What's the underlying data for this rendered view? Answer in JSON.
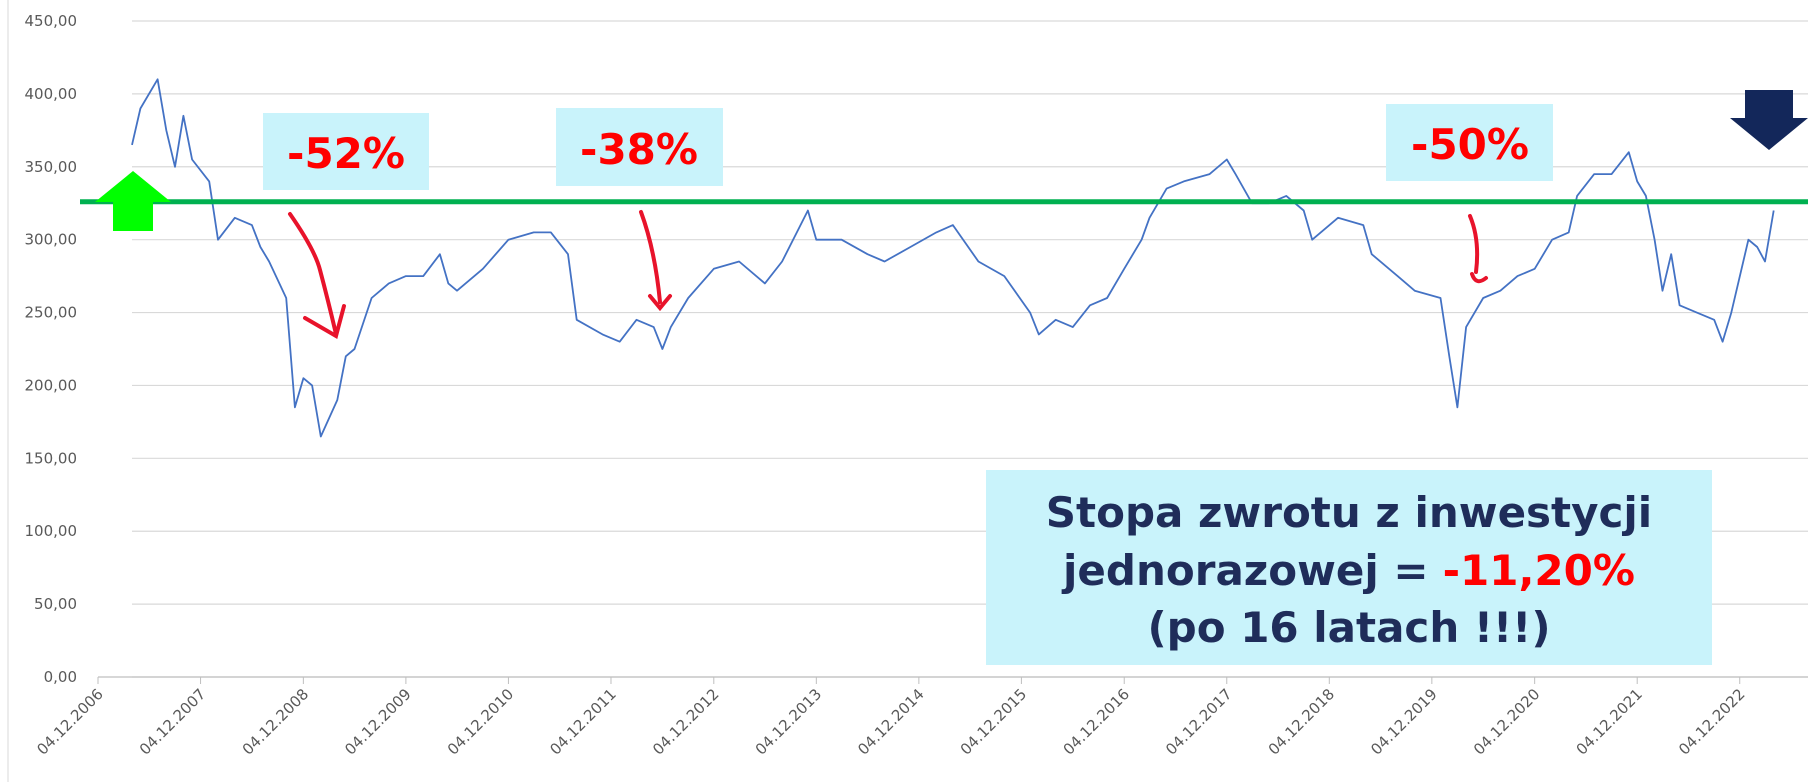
{
  "chart_data": {
    "type": "line",
    "color": "#4472c4",
    "x": [
      "04.04.2007",
      "04.05.2007",
      "04.07.2007",
      "04.08.2007",
      "04.09.2007",
      "04.10.2007",
      "04.11.2007",
      "04.01.2008",
      "04.02.2008",
      "04.04.2008",
      "04.06.2008",
      "04.07.2008",
      "04.08.2008",
      "04.10.2008",
      "04.11.2008",
      "04.12.2008",
      "04.01.2009",
      "04.02.2009",
      "04.04.2009",
      "04.05.2009",
      "04.06.2009",
      "04.08.2009",
      "04.10.2009",
      "04.12.2009",
      "04.02.2010",
      "04.04.2010",
      "04.05.2010",
      "04.06.2010",
      "04.09.2010",
      "04.12.2010",
      "04.03.2011",
      "04.05.2011",
      "04.07.2011",
      "04.08.2011",
      "04.11.2011",
      "04.01.2012",
      "04.03.2012",
      "04.05.2012",
      "04.06.2012",
      "04.07.2012",
      "04.09.2012",
      "04.12.2012",
      "04.03.2013",
      "04.06.2013",
      "04.08.2013",
      "04.11.2013",
      "04.12.2013",
      "04.03.2014",
      "04.06.2014",
      "04.08.2014",
      "04.11.2014",
      "04.02.2015",
      "04.04.2015",
      "04.07.2015",
      "04.10.2015",
      "04.01.2016",
      "04.02.2016",
      "04.04.2016",
      "04.06.2016",
      "04.08.2016",
      "04.10.2016",
      "04.12.2016",
      "04.02.2017",
      "04.03.2017",
      "04.05.2017",
      "04.07.2017",
      "04.10.2017",
      "04.12.2017",
      "04.01.2018",
      "04.03.2018",
      "04.05.2018",
      "04.07.2018",
      "04.09.2018",
      "04.10.2018",
      "04.01.2019",
      "04.04.2019",
      "04.05.2019",
      "04.08.2019",
      "04.10.2019",
      "04.01.2020",
      "04.02.2020",
      "04.03.2020",
      "04.04.2020",
      "04.06.2020",
      "04.08.2020",
      "04.10.2020",
      "04.12.2020",
      "04.02.2021",
      "04.04.2021",
      "04.05.2021",
      "04.07.2021",
      "04.09.2021",
      "04.11.2021",
      "04.12.2021",
      "04.01.2022",
      "04.02.2022",
      "04.03.2022",
      "04.04.2022",
      "04.05.2022",
      "04.07.2022",
      "04.09.2022",
      "04.10.2022",
      "04.11.2022",
      "04.01.2023",
      "04.02.2023",
      "04.03.2023",
      "04.04.2023"
    ],
    "values": [
      365,
      390,
      410,
      375,
      350,
      385,
      355,
      340,
      300,
      315,
      310,
      295,
      285,
      260,
      185,
      205,
      200,
      165,
      190,
      220,
      225,
      260,
      270,
      275,
      275,
      290,
      270,
      265,
      280,
      300,
      305,
      305,
      290,
      245,
      235,
      230,
      245,
      240,
      225,
      240,
      260,
      280,
      285,
      270,
      285,
      320,
      300,
      300,
      290,
      285,
      295,
      305,
      310,
      285,
      275,
      250,
      235,
      245,
      240,
      255,
      260,
      280,
      300,
      315,
      335,
      340,
      345,
      355,
      345,
      325,
      325,
      330,
      320,
      300,
      315,
      310,
      290,
      275,
      265,
      260,
      220,
      185,
      240,
      260,
      265,
      275,
      280,
      300,
      305,
      330,
      345,
      345,
      360,
      340,
      330,
      300,
      265,
      290,
      255,
      250,
      245,
      230,
      250,
      300,
      295,
      285,
      320
    ],
    "xlim": [
      "04.12.2006",
      "04.08.2023"
    ],
    "xticks": [
      "04.12.2006",
      "04.12.2007",
      "04.12.2008",
      "04.12.2009",
      "04.12.2010",
      "04.12.2011",
      "04.12.2012",
      "04.12.2013",
      "04.12.2014",
      "04.12.2015",
      "04.12.2016",
      "04.12.2017",
      "04.12.2018",
      "04.12.2019",
      "04.12.2020",
      "04.12.2021",
      "04.12.2022"
    ],
    "ylim": [
      0,
      450
    ],
    "yticks": [
      {
        "value": 0,
        "label": "0,00"
      },
      {
        "value": 50,
        "label": "50,00"
      },
      {
        "value": 100,
        "label": "100,00"
      },
      {
        "value": 150,
        "label": "150,00"
      },
      {
        "value": 200,
        "label": "200,00"
      },
      {
        "value": 250,
        "label": "250,00"
      },
      {
        "value": 300,
        "label": "300,00"
      },
      {
        "value": 350,
        "label": "350,00"
      },
      {
        "value": 400,
        "label": "400,00"
      },
      {
        "value": 450,
        "label": "450,00"
      }
    ],
    "grid": true,
    "reference_line": {
      "value": 326,
      "color": "#00b050"
    },
    "annotations": [
      {
        "text": "-52%"
      },
      {
        "text": "-38%"
      },
      {
        "text": "-50%"
      }
    ],
    "summary": {
      "line1": "Stopa zwrotu z inwestycji",
      "line2": "jednorazowej =",
      "highlight": "-11,20%",
      "line3": "(po 16 latach !!!)"
    }
  }
}
